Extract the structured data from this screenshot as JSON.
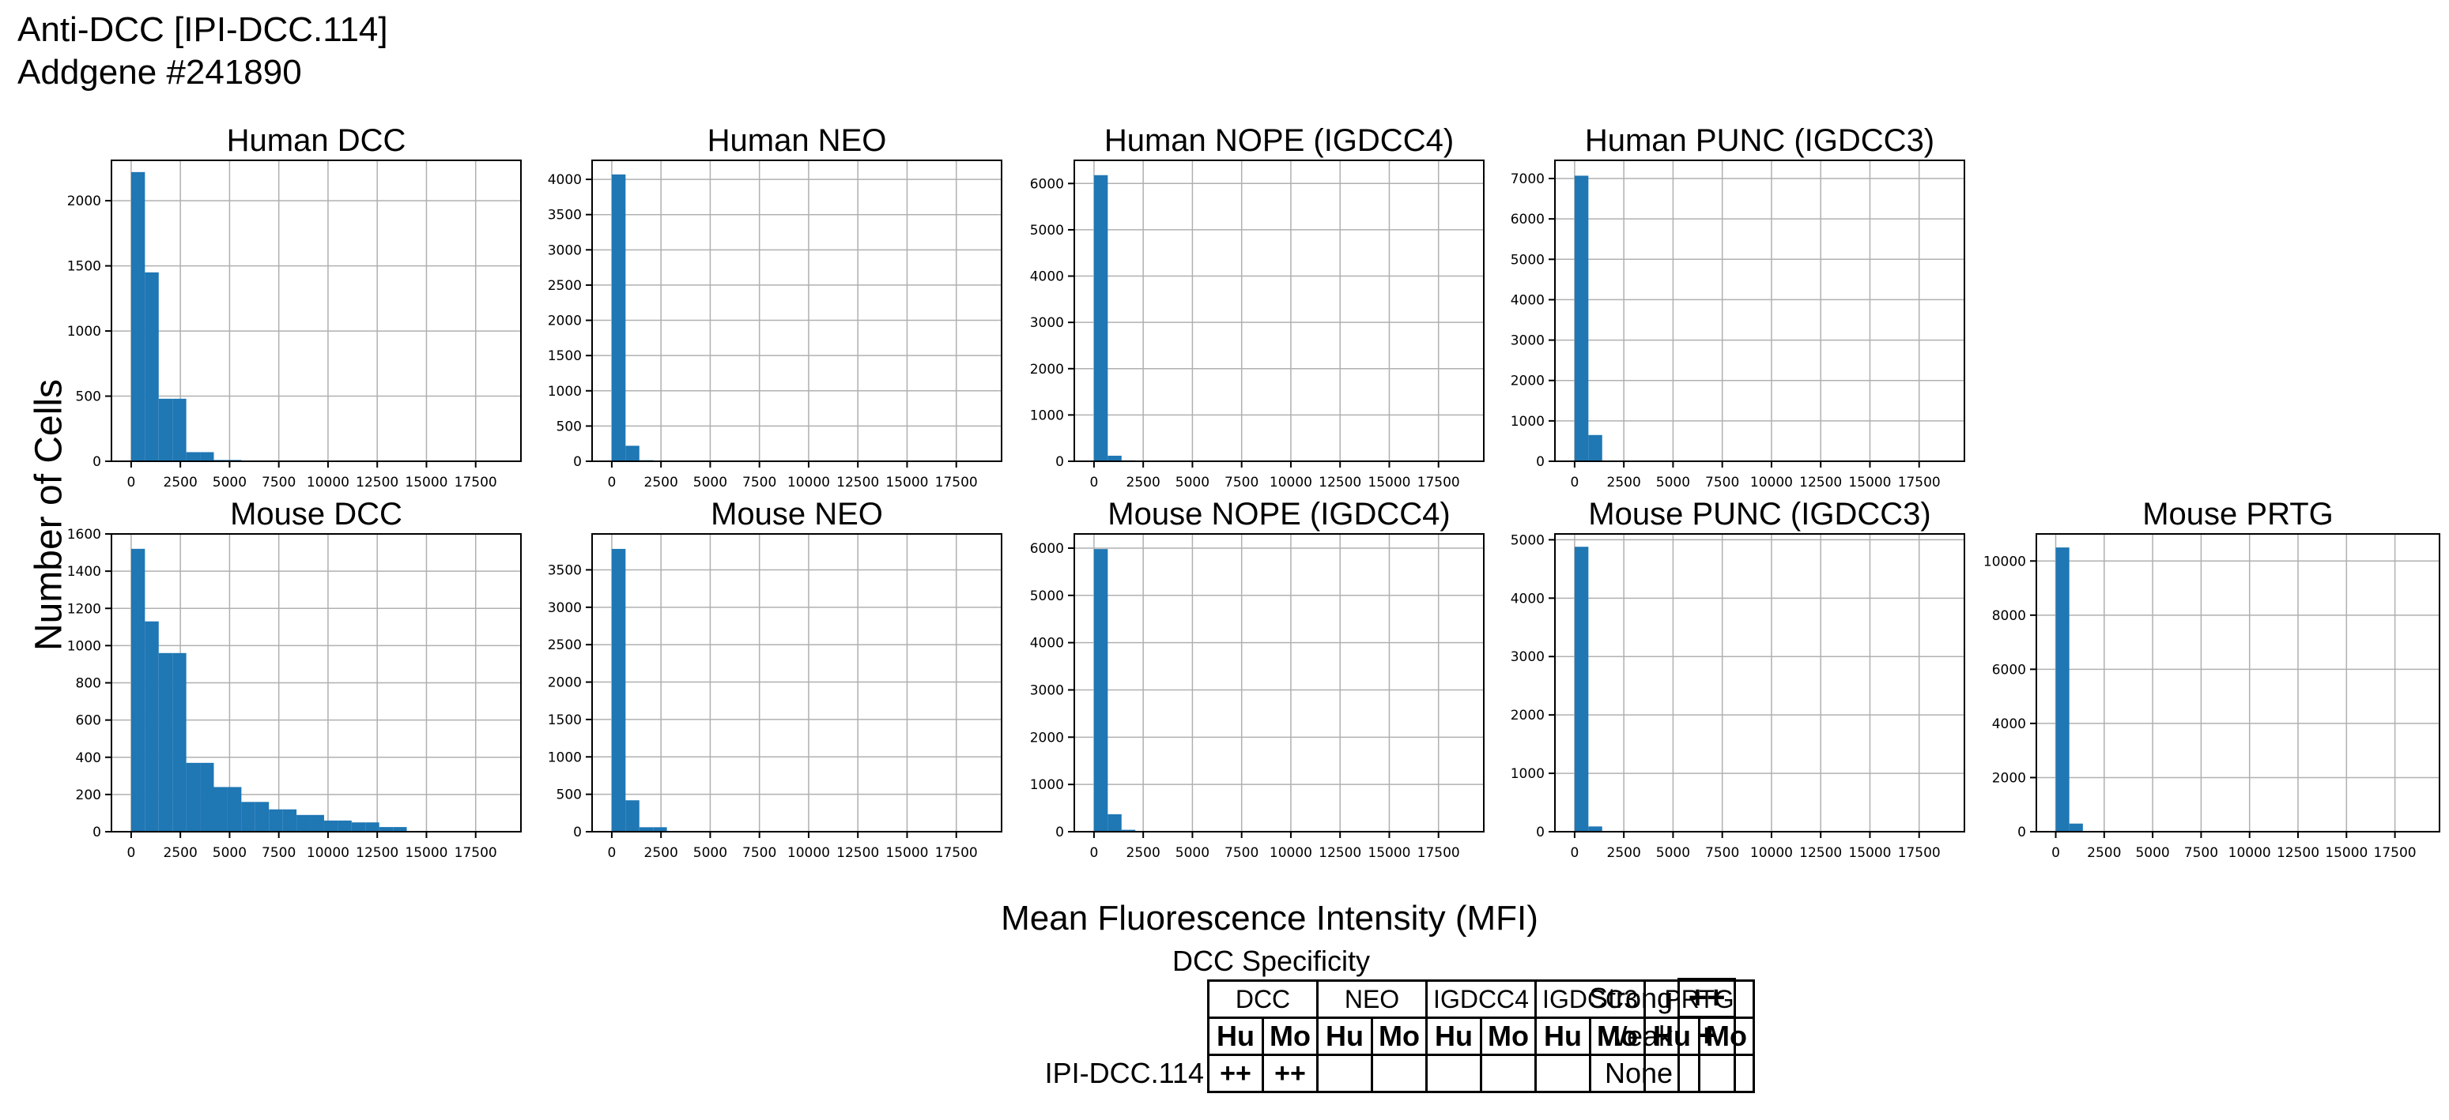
{
  "header": {
    "title": "Anti-DCC [IPI-DCC.114]",
    "subtitle": "Addgene #241890"
  },
  "ylabel": "Number of Cells",
  "xlabel": "Mean Fluorescence Intensity (MFI)",
  "bar_color": "#1f77b4",
  "chart_data": [
    {
      "type": "bar",
      "title": "Human DCC",
      "bin_width": 700,
      "xlim": [
        -1000,
        19800
      ],
      "xticks": [
        "0",
        "2500",
        "5000",
        "7500",
        "10000",
        "12500",
        "15000",
        "17500"
      ],
      "ylim": [
        0,
        2310
      ],
      "yticks": [
        "0",
        "500",
        "1000",
        "1500",
        "2000"
      ],
      "values": [
        2220,
        1450,
        480,
        480,
        70,
        70,
        10,
        10,
        0,
        0,
        0,
        0,
        0,
        0,
        0,
        0,
        0,
        0,
        0,
        0,
        0,
        0,
        0,
        0,
        0,
        0,
        0
      ]
    },
    {
      "type": "bar",
      "title": "Human NEO",
      "bin_width": 700,
      "xlim": [
        -1000,
        19800
      ],
      "xticks": [
        "0",
        "2500",
        "5000",
        "7500",
        "10000",
        "12500",
        "15000",
        "17500"
      ],
      "ylim": [
        0,
        4270
      ],
      "yticks": [
        "0",
        "500",
        "1000",
        "1500",
        "2000",
        "2500",
        "3000",
        "3500",
        "4000"
      ],
      "values": [
        4070,
        220,
        15,
        3,
        0,
        0,
        0,
        0,
        0,
        0,
        0,
        0,
        0,
        0,
        0,
        0,
        0,
        0,
        0,
        0,
        0,
        0,
        0,
        0,
        0,
        0,
        0
      ]
    },
    {
      "type": "bar",
      "title": "Human NOPE (IGDCC4)",
      "bin_width": 700,
      "xlim": [
        -1000,
        19800
      ],
      "xticks": [
        "0",
        "2500",
        "5000",
        "7500",
        "10000",
        "12500",
        "15000",
        "17500"
      ],
      "ylim": [
        0,
        6500
      ],
      "yticks": [
        "0",
        "1000",
        "2000",
        "3000",
        "4000",
        "5000",
        "6000"
      ],
      "values": [
        6180,
        120,
        20,
        5,
        0,
        0,
        0,
        0,
        0,
        0,
        0,
        0,
        0,
        0,
        0,
        0,
        0,
        0,
        0,
        0,
        0,
        0,
        0,
        0,
        0,
        0,
        0
      ]
    },
    {
      "type": "bar",
      "title": "Human PUNC (IGDCC3)",
      "bin_width": 700,
      "xlim": [
        -1000,
        19800
      ],
      "xticks": [
        "0",
        "2500",
        "5000",
        "7500",
        "10000",
        "12500",
        "15000",
        "17500"
      ],
      "ylim": [
        0,
        7450
      ],
      "yticks": [
        "0",
        "1000",
        "2000",
        "3000",
        "4000",
        "5000",
        "6000",
        "7000"
      ],
      "values": [
        7070,
        650,
        20,
        5,
        0,
        0,
        0,
        0,
        0,
        0,
        0,
        0,
        0,
        0,
        0,
        0,
        0,
        0,
        0,
        0,
        0,
        0,
        0,
        0,
        0,
        0,
        0
      ]
    },
    {
      "type": "bar",
      "title": "Mouse DCC",
      "bin_width": 700,
      "xlim": [
        -1000,
        19800
      ],
      "xticks": [
        "0",
        "2500",
        "5000",
        "7500",
        "10000",
        "12500",
        "15000",
        "17500"
      ],
      "ylim": [
        0,
        1600
      ],
      "yticks": [
        "0",
        "200",
        "400",
        "600",
        "800",
        "1000",
        "1200",
        "1400",
        "1600"
      ],
      "values": [
        1520,
        1130,
        960,
        960,
        370,
        370,
        240,
        240,
        160,
        160,
        120,
        120,
        90,
        90,
        60,
        60,
        50,
        50,
        25,
        25,
        0,
        0,
        0,
        0,
        0,
        0,
        0
      ]
    },
    {
      "type": "bar",
      "title": "Mouse NEO",
      "bin_width": 700,
      "xlim": [
        -1000,
        19800
      ],
      "xticks": [
        "0",
        "2500",
        "5000",
        "7500",
        "10000",
        "12500",
        "15000",
        "17500"
      ],
      "ylim": [
        0,
        3980
      ],
      "yticks": [
        "0",
        "500",
        "1000",
        "1500",
        "2000",
        "2500",
        "3000",
        "3500"
      ],
      "values": [
        3780,
        420,
        60,
        60,
        5,
        0,
        0,
        0,
        0,
        0,
        0,
        0,
        0,
        0,
        0,
        0,
        0,
        0,
        0,
        0,
        0,
        0,
        0,
        0,
        0,
        0,
        0
      ]
    },
    {
      "type": "bar",
      "title": "Mouse NOPE (IGDCC4)",
      "bin_width": 700,
      "xlim": [
        -1000,
        19800
      ],
      "xticks": [
        "0",
        "2500",
        "5000",
        "7500",
        "10000",
        "12500",
        "15000",
        "17500"
      ],
      "ylim": [
        0,
        6300
      ],
      "yticks": [
        "0",
        "1000",
        "2000",
        "3000",
        "4000",
        "5000",
        "6000"
      ],
      "values": [
        5980,
        370,
        40,
        10,
        0,
        0,
        0,
        0,
        0,
        0,
        0,
        0,
        0,
        0,
        0,
        0,
        0,
        0,
        0,
        0,
        0,
        0,
        0,
        0,
        0,
        0,
        0
      ]
    },
    {
      "type": "bar",
      "title": "Mouse PUNC (IGDCC3)",
      "bin_width": 700,
      "xlim": [
        -1000,
        19800
      ],
      "xticks": [
        "0",
        "2500",
        "5000",
        "7500",
        "10000",
        "12500",
        "15000",
        "17500"
      ],
      "ylim": [
        0,
        5100
      ],
      "yticks": [
        "0",
        "1000",
        "2000",
        "3000",
        "4000",
        "5000"
      ],
      "values": [
        4880,
        90,
        10,
        3,
        0,
        0,
        0,
        0,
        0,
        0,
        0,
        0,
        0,
        0,
        0,
        0,
        0,
        0,
        0,
        0,
        0,
        0,
        0,
        0,
        0,
        0,
        0
      ]
    },
    {
      "type": "bar",
      "title": "Mouse PRTG",
      "bin_width": 700,
      "xlim": [
        -1000,
        19800
      ],
      "xticks": [
        "0",
        "2500",
        "5000",
        "7500",
        "10000",
        "12500",
        "15000",
        "17500"
      ],
      "ylim": [
        0,
        11000
      ],
      "yticks": [
        "0",
        "2000",
        "4000",
        "6000",
        "8000",
        "10000"
      ],
      "values": [
        10500,
        300,
        20,
        5,
        0,
        0,
        0,
        0,
        0,
        0,
        0,
        0,
        0,
        0,
        0,
        0,
        0,
        0,
        0,
        0,
        0,
        0,
        0,
        0,
        0,
        0,
        0
      ]
    }
  ],
  "specificity": {
    "title": "DCC Specificity",
    "groups": [
      "DCC",
      "NEO",
      "IGDCC4",
      "IGDCC3",
      "PRTG"
    ],
    "species": [
      "Hu",
      "Mo",
      "Hu",
      "Mo",
      "Hu",
      "Mo",
      "Hu",
      "Mo",
      "Hu",
      "Mo"
    ],
    "row_label": "IPI-DCC.114",
    "row_values": [
      "++",
      "++",
      "",
      "",
      "",
      "",
      "",
      "",
      "",
      ""
    ]
  },
  "legend": [
    {
      "label": "Strong",
      "symbol": "++"
    },
    {
      "label": "Weak",
      "symbol": "+"
    },
    {
      "label": "None",
      "symbol": ""
    }
  ]
}
